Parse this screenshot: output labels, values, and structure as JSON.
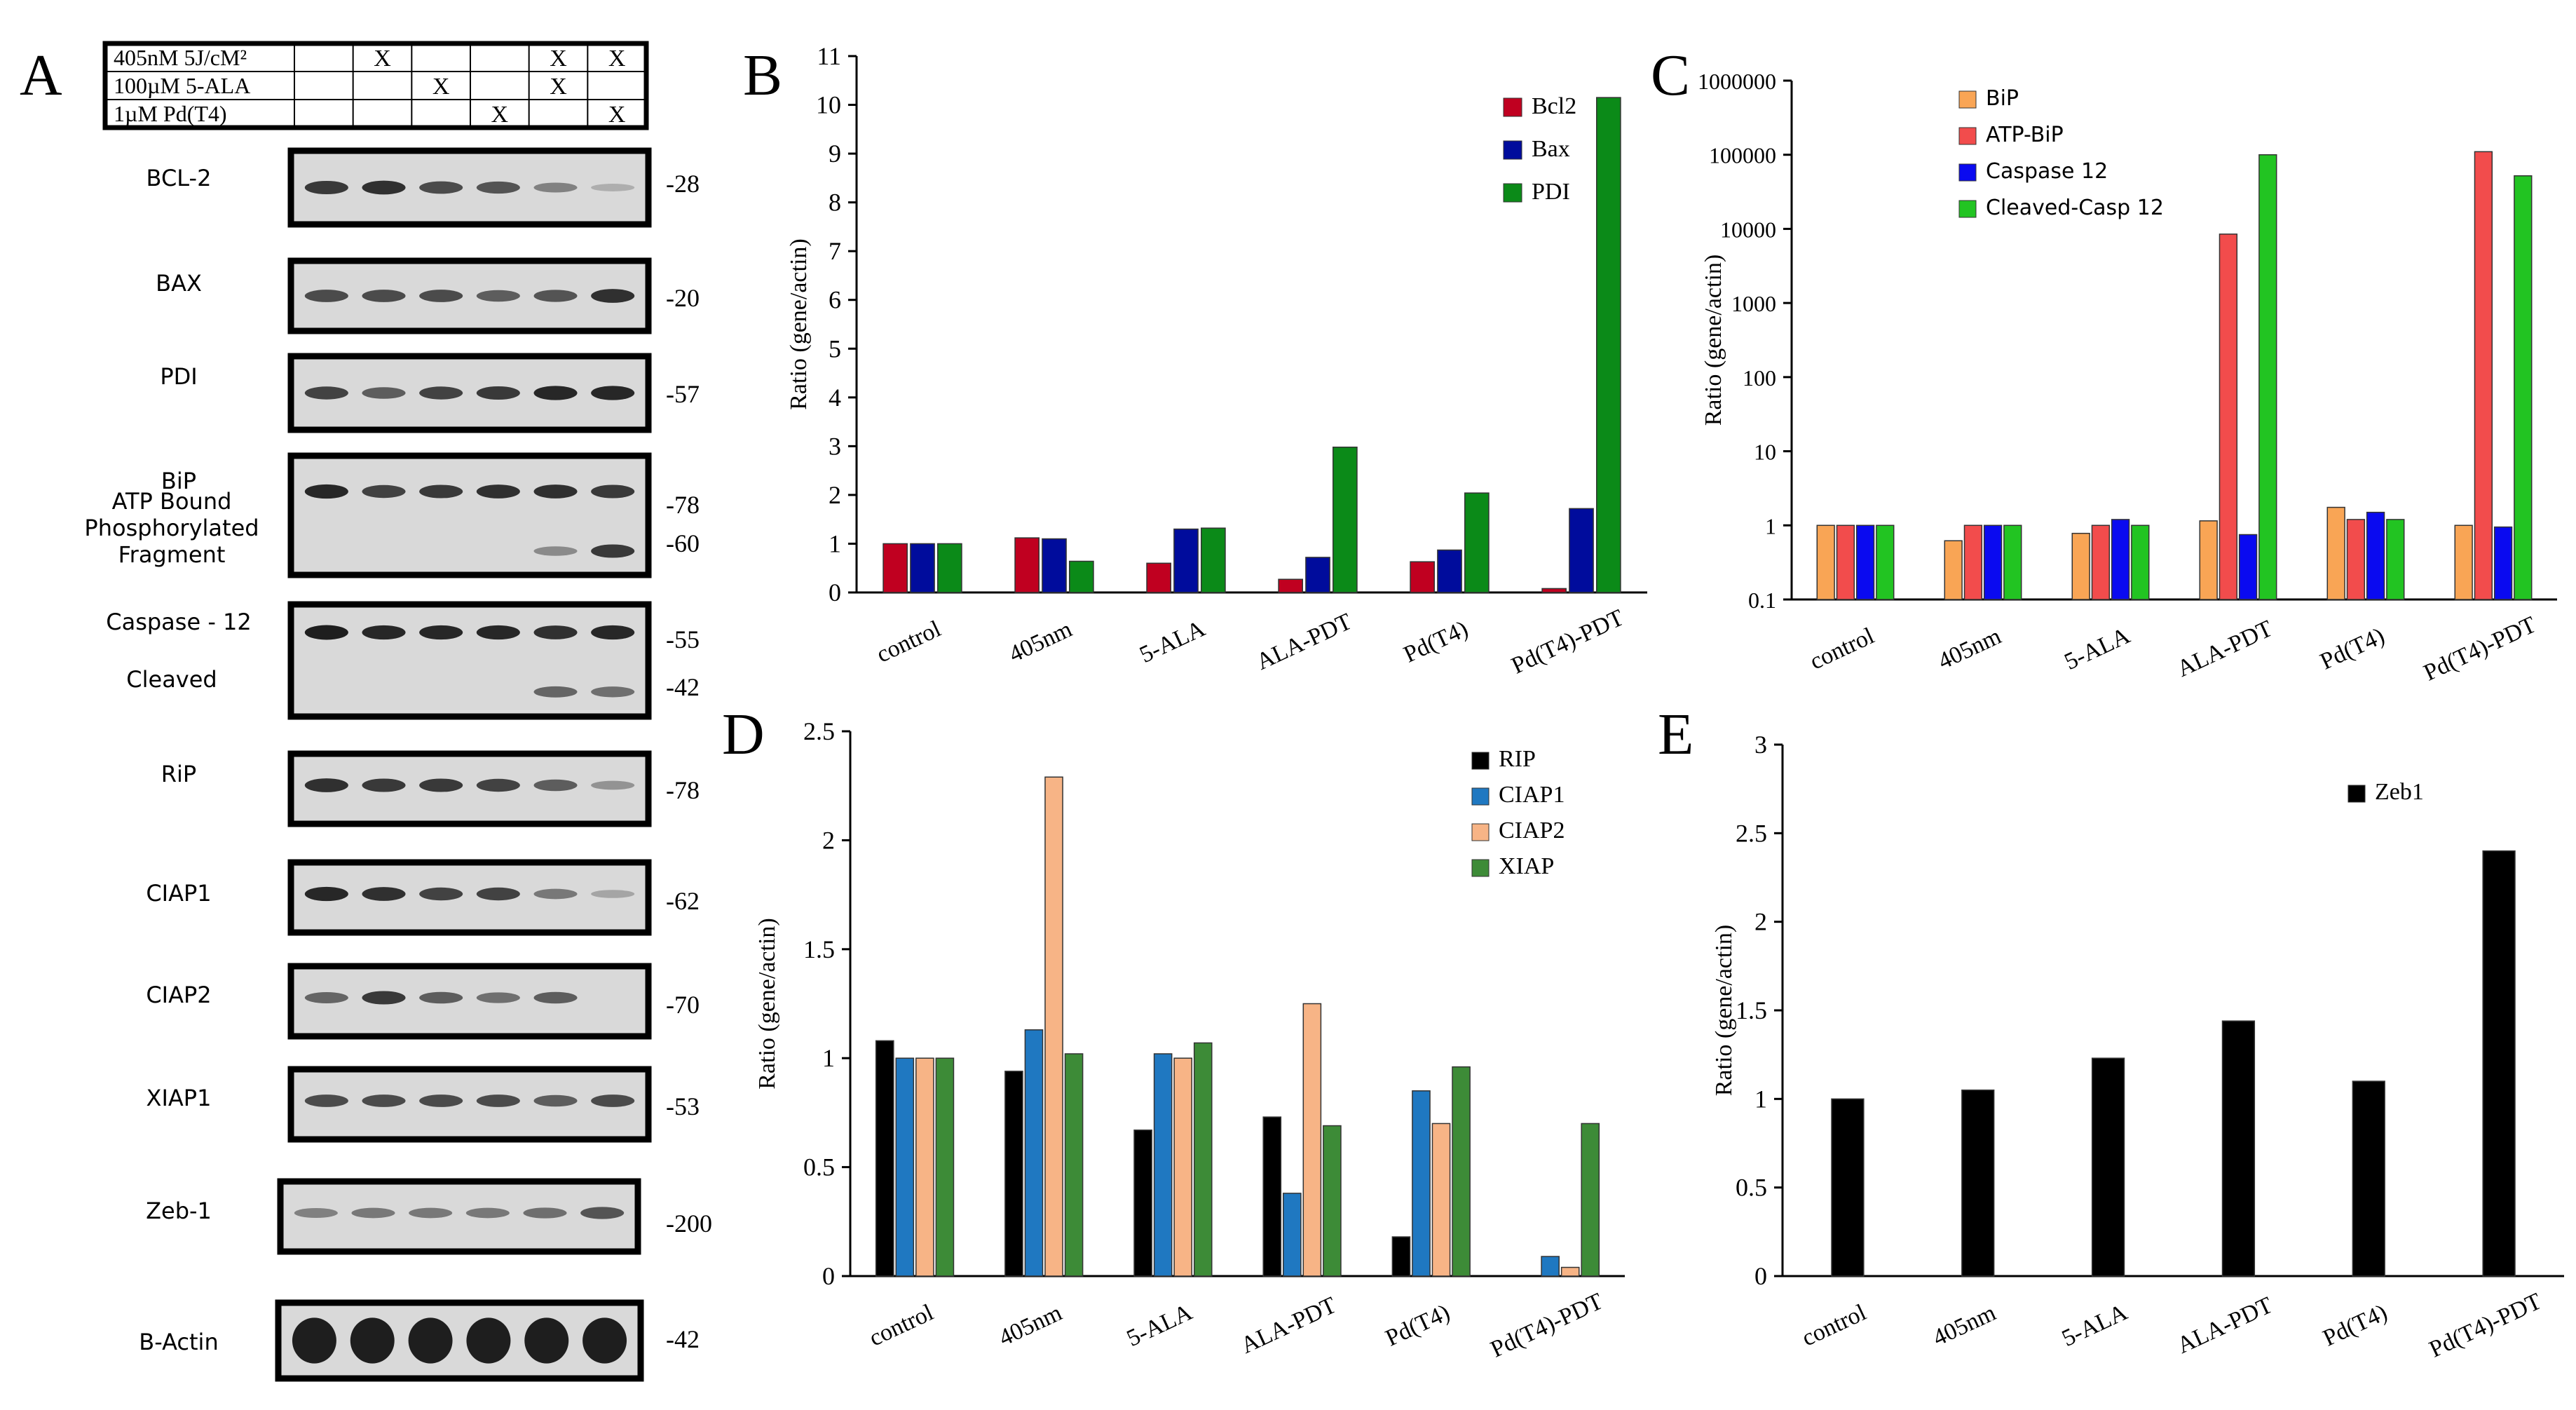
{
  "figure": {
    "panel_labels": {
      "A": "A",
      "B": "B",
      "C": "C",
      "D": "D",
      "E": "E"
    }
  },
  "blot": {
    "treatment_table": [
      {
        "label": "405nM 5J/cM²",
        "marks": [
          "",
          "X",
          "",
          "",
          "X",
          "X"
        ]
      },
      {
        "label": "100µM 5-ALA",
        "marks": [
          "",
          "",
          "X",
          "",
          "X",
          ""
        ]
      },
      {
        "label": "1µM Pd(T4)",
        "marks": [
          "",
          "",
          "",
          "X",
          "",
          "X"
        ]
      }
    ],
    "rows": [
      {
        "label": "BCL-2",
        "markers": [
          "-28"
        ],
        "bands": [
          [
            0.8,
            0.85,
            0.7,
            0.65,
            0.4,
            0.15
          ]
        ]
      },
      {
        "label": "BAX",
        "markers": [
          "-20"
        ],
        "bands": [
          [
            0.7,
            0.7,
            0.7,
            0.6,
            0.65,
            0.85
          ]
        ]
      },
      {
        "label": "PDI",
        "markers": [
          "-57"
        ],
        "bands": [
          [
            0.75,
            0.6,
            0.75,
            0.8,
            0.9,
            0.9
          ]
        ]
      },
      {
        "label": "BiP",
        "sublabel": "ATP Bound\nPhosphorylated\nFragment",
        "markers": [
          "-78",
          "-60"
        ],
        "bands": [
          [
            0.9,
            0.75,
            0.8,
            0.85,
            0.85,
            0.8
          ],
          [
            0,
            0,
            0,
            0,
            0.35,
            0.8
          ]
        ]
      },
      {
        "label": "Caspase - 12",
        "sublabel": "Cleaved",
        "markers": [
          "-55",
          "-42"
        ],
        "bands": [
          [
            0.95,
            0.9,
            0.9,
            0.9,
            0.85,
            0.9
          ],
          [
            0,
            0,
            0,
            0,
            0.55,
            0.5
          ]
        ]
      },
      {
        "label": "RiP",
        "markers": [
          "-78"
        ],
        "bands": [
          [
            0.85,
            0.8,
            0.8,
            0.75,
            0.6,
            0.3
          ]
        ]
      },
      {
        "label": "CIAP1",
        "markers": [
          "-62"
        ],
        "bands": [
          [
            0.9,
            0.85,
            0.75,
            0.75,
            0.45,
            0.2
          ]
        ]
      },
      {
        "label": "CIAP2",
        "markers": [
          "-70"
        ],
        "bands": [
          [
            0.55,
            0.8,
            0.6,
            0.5,
            0.6,
            0.0
          ]
        ]
      },
      {
        "label": "XIAP1",
        "markers": [
          "-53"
        ],
        "bands": [
          [
            0.7,
            0.7,
            0.7,
            0.7,
            0.6,
            0.7
          ]
        ]
      },
      {
        "label": "Zeb-1",
        "markers": [
          "-200"
        ],
        "bands": [
          [
            0.4,
            0.45,
            0.45,
            0.45,
            0.5,
            0.65
          ]
        ]
      },
      {
        "label": "B-Actin",
        "markers": [
          "-42"
        ],
        "bands": [
          [
            0.95,
            0.95,
            0.95,
            0.95,
            0.95,
            0.95
          ]
        ]
      }
    ]
  },
  "chart_data": [
    {
      "panel": "B",
      "type": "bar",
      "ylabel": "Ratio (gene/actin)",
      "ylim": [
        0,
        11
      ],
      "yticks": [
        "0",
        "1",
        "2",
        "3",
        "4",
        "5",
        "6",
        "7",
        "8",
        "9",
        "10",
        "11"
      ],
      "categories": [
        "control",
        "405nm",
        "5-ALA",
        "ALA-PDT",
        "Pd(T4)",
        "Pd(T4)-PDT"
      ],
      "legend_position": "top-right",
      "series": [
        {
          "name": "Bcl2",
          "color": "#C00020",
          "values": [
            1.0,
            1.12,
            0.6,
            0.27,
            0.63,
            0.08
          ]
        },
        {
          "name": "Bax",
          "color": "#000C9C",
          "values": [
            1.0,
            1.1,
            1.3,
            0.72,
            0.87,
            1.72
          ]
        },
        {
          "name": "PDI",
          "color": "#0B8A18",
          "values": [
            1.0,
            0.64,
            1.32,
            2.98,
            2.04,
            10.15
          ]
        }
      ]
    },
    {
      "panel": "C",
      "type": "bar",
      "scale": "log",
      "ylabel": "Ratio (gene/actin)",
      "ylim": [
        0.1,
        1000000
      ],
      "yticks": [
        "0.1",
        "1",
        "10",
        "100",
        "1000",
        "10000",
        "100000",
        "1000000"
      ],
      "categories": [
        "control",
        "405nm",
        "5-ALA",
        "ALA-PDT",
        "Pd(T4)",
        "Pd(T4)-PDT"
      ],
      "legend_position": "top-left",
      "series": [
        {
          "name": "BiP",
          "color": "#F9A555",
          "values": [
            1.0,
            0.62,
            0.78,
            1.15,
            1.75,
            1.0
          ]
        },
        {
          "name": "ATP-BiP",
          "color": "#F24C4C",
          "values": [
            1.0,
            1.0,
            1.0,
            8500,
            1.2,
            110000
          ]
        },
        {
          "name": "Caspase 12",
          "color": "#0A0AF0",
          "values": [
            1.0,
            1.0,
            1.2,
            0.75,
            1.5,
            0.95
          ]
        },
        {
          "name": "Cleaved-Casp 12",
          "color": "#22C422",
          "values": [
            1.0,
            1.0,
            1.0,
            100000,
            1.2,
            52000
          ]
        }
      ]
    },
    {
      "panel": "D",
      "type": "bar",
      "ylabel": "Ratio (gene/actin)",
      "ylim": [
        0,
        2.5
      ],
      "yticks": [
        "0",
        "0.5",
        "1",
        "1.5",
        "2",
        "2.5"
      ],
      "categories": [
        "control",
        "405nm",
        "5-ALA",
        "ALA-PDT",
        "Pd(T4)",
        "Pd(T4)-PDT"
      ],
      "legend_position": "top-right",
      "series": [
        {
          "name": "RIP",
          "color": "#000000",
          "values": [
            1.08,
            0.94,
            0.67,
            0.73,
            0.18,
            0.0
          ]
        },
        {
          "name": "CIAP1",
          "color": "#1F78C1",
          "values": [
            1.0,
            1.13,
            1.02,
            0.38,
            0.85,
            0.09
          ]
        },
        {
          "name": "CIAP2",
          "color": "#F7B486",
          "values": [
            1.0,
            2.29,
            1.0,
            1.25,
            0.7,
            0.04
          ]
        },
        {
          "name": "XIAP",
          "color": "#3D8B37",
          "values": [
            1.0,
            1.02,
            1.07,
            0.69,
            0.96,
            0.7
          ]
        }
      ]
    },
    {
      "panel": "E",
      "type": "bar",
      "ylabel": "Ratio (gene/actin)",
      "ylim": [
        0,
        3
      ],
      "yticks": [
        "0",
        "0.5",
        "1",
        "1.5",
        "2",
        "2.5",
        "3"
      ],
      "categories": [
        "control",
        "405nm",
        "5-ALA",
        "ALA-PDT",
        "Pd(T4)",
        "Pd(T4)-PDT"
      ],
      "legend_position": "top-right",
      "series": [
        {
          "name": "Zeb1",
          "color": "#000000",
          "values": [
            1.0,
            1.05,
            1.23,
            1.44,
            1.1,
            2.4
          ]
        }
      ]
    }
  ]
}
